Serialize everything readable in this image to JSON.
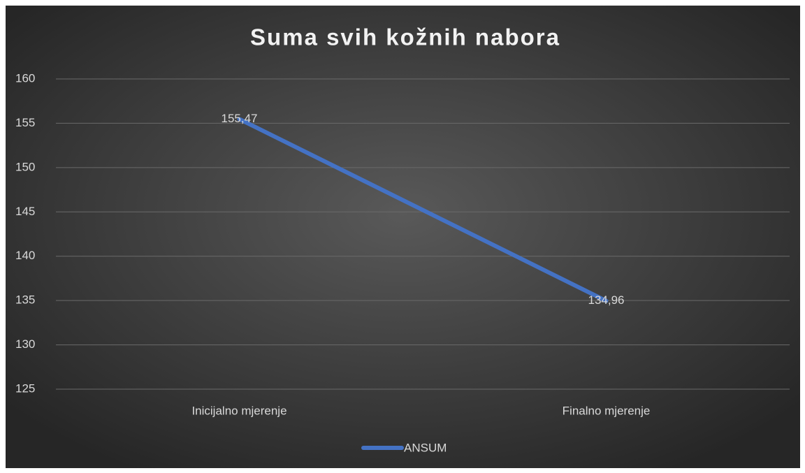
{
  "chart_data": {
    "type": "line",
    "title": "Suma svih kožnih nabora",
    "categories": [
      "Inicijalno mjerenje",
      "Finalno mjerenje"
    ],
    "series": [
      {
        "name": "ANSUM",
        "color": "#4472c4",
        "values": [
          155.47,
          134.96
        ],
        "value_labels": [
          "155,47",
          "134,96"
        ]
      }
    ],
    "ylim": [
      125,
      160
    ],
    "yticks": [
      125,
      130,
      135,
      140,
      145,
      150,
      155,
      160
    ],
    "grid": true,
    "legend": "bottom"
  }
}
